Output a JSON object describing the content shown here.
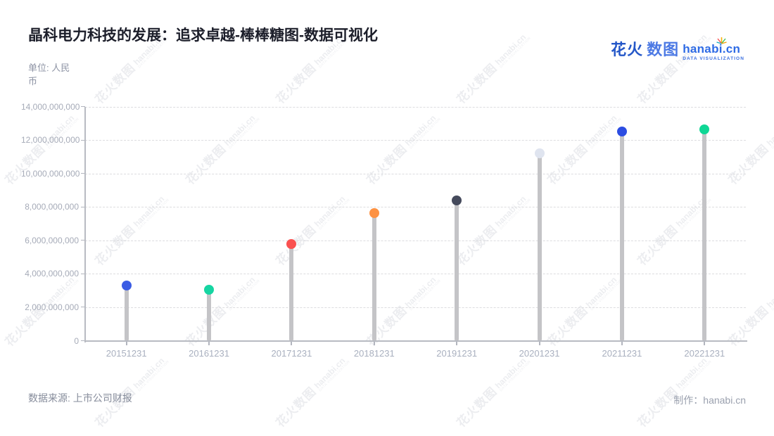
{
  "title": "晶科电力科技的发展：追求卓越-棒棒糖图-数据可视化",
  "unit_label": "单位: 人民币",
  "logo": {
    "cn_bold": "花火",
    "cn_light": "数图",
    "domain": "hanabi.cn",
    "tagline": "DATA VISUALIZATION"
  },
  "watermark": {
    "cn": "花火数图",
    "domain": "hanabi.cn",
    "tagline": "DATA VISUALIZATION"
  },
  "footer": {
    "source": "数据来源: 上市公司财报",
    "credit": "制作：hanabi.cn"
  },
  "chart_data": {
    "type": "bar",
    "style": "lollipop",
    "title": "晶科电力科技的发展：追求卓越-棒棒糖图-数据可视化",
    "unit": "人民币",
    "xlabel": "",
    "ylabel": "",
    "categories": [
      "20151231",
      "20161231",
      "20171231",
      "20181231",
      "20191231",
      "20201231",
      "20211231",
      "20221231"
    ],
    "values": [
      3310000000,
      3060000000,
      5800000000,
      7620000000,
      8380000000,
      11200000000,
      12500000000,
      12650000000
    ],
    "ylim": [
      0,
      14000000000
    ],
    "ytick_step": 2000000000,
    "ytick_labels": [
      "0",
      "2,000,000,000",
      "4,000,000,000",
      "6,000,000,000",
      "8,000,000,000",
      "10,000,000,000",
      "12,000,000,000",
      "14,000,000,000"
    ],
    "grid": "horizontal dashed",
    "legend": "none",
    "dot_colors": [
      "#3b5ce4",
      "#16d5a2",
      "#fa5150",
      "#fd9243",
      "#454a5c",
      "#dfe4ef",
      "#2c4de2",
      "#0fd795"
    ],
    "stem_color": "#c4c4c7",
    "axis_color": "#b8bbc2",
    "tick_label_color": "#a9b0bf"
  },
  "spark_colors": [
    "#fa5252",
    "#f59f00",
    "#40c057",
    "#15aabf",
    "#fab005"
  ]
}
